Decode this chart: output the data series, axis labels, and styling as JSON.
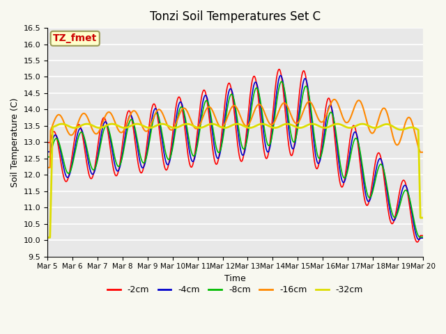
{
  "title": "Tonzi Soil Temperatures Set C",
  "xlabel": "Time",
  "ylabel": "Soil Temperature (C)",
  "ylim": [
    9.5,
    16.5
  ],
  "series_colors": {
    "-2cm": "#ff0000",
    "-4cm": "#0000cc",
    "-8cm": "#00bb00",
    "-16cm": "#ff8800",
    "-32cm": "#dddd00"
  },
  "xtick_labels": [
    "Mar 5",
    "Mar 6",
    "Mar 7",
    "Mar 8",
    "Mar 9",
    "Mar 10",
    "Mar 11",
    "Mar 12",
    "Mar 13",
    "Mar 14",
    "Mar 15",
    "Mar 16",
    "Mar 17",
    "Mar 18",
    "Mar 19",
    "Mar 20"
  ],
  "annotation_text": "TZ_fmet",
  "annotation_color": "#cc0000",
  "annotation_bg": "#ffffcc",
  "title_fontsize": 12,
  "axis_fontsize": 9,
  "legend_fontsize": 9
}
